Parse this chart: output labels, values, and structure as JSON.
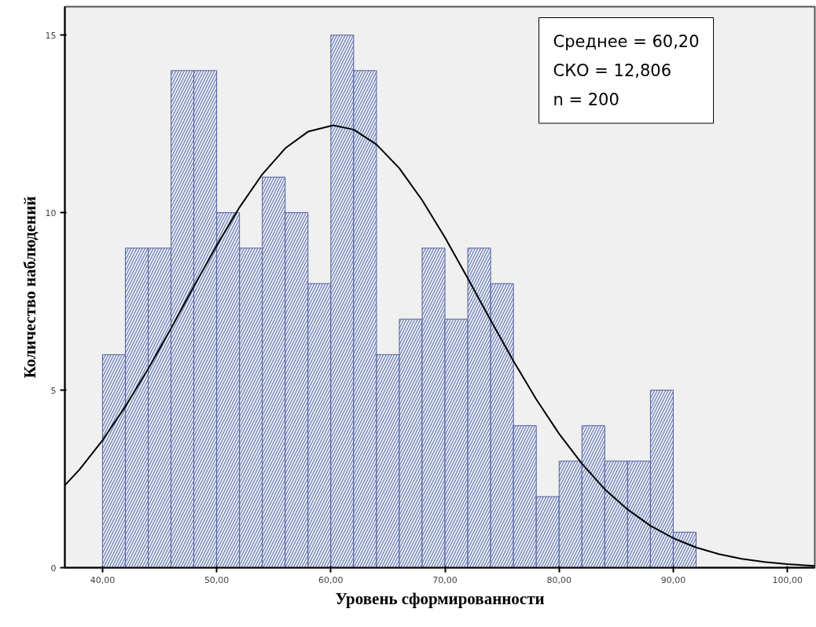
{
  "chart_data": {
    "type": "histogram",
    "xlabel": "Уровень сформированности",
    "ylabel": "Количество наблюдений",
    "annotations": [
      "Среднее = 60,20",
      "СКО = 12,806",
      "n = 200"
    ],
    "bins": [
      40,
      42,
      44,
      46,
      48,
      50,
      52,
      54,
      56,
      58,
      60,
      62,
      64,
      66,
      68,
      70,
      72,
      74,
      76,
      78,
      80,
      82,
      84,
      86,
      88,
      90,
      92
    ],
    "values": [
      6,
      9,
      9,
      14,
      14,
      10,
      9,
      11,
      10,
      8,
      15,
      14,
      6,
      7,
      9,
      7,
      9,
      8,
      4,
      2,
      3,
      4,
      3,
      3,
      5,
      1
    ],
    "color": "#e6eaf4",
    "series": [
      {
        "type": "line",
        "color": "#000000",
        "x": [
          36.7,
          38,
          40,
          42,
          44,
          46,
          48,
          50,
          52,
          54,
          56,
          58,
          60.2,
          62,
          64,
          66,
          68,
          70,
          72,
          74,
          76,
          78,
          80,
          82,
          84,
          86,
          88,
          90,
          92,
          94,
          96,
          98,
          100,
          102.4
        ],
        "values": [
          2.32,
          2.77,
          3.59,
          4.54,
          5.6,
          6.74,
          7.92,
          9.07,
          10.15,
          11.08,
          11.81,
          12.28,
          12.46,
          12.34,
          11.92,
          11.25,
          10.35,
          9.3,
          8.15,
          6.97,
          5.82,
          4.74,
          3.77,
          2.93,
          2.21,
          1.64,
          1.18,
          0.83,
          0.57,
          0.38,
          0.25,
          0.16,
          0.1,
          0.05
        ]
      }
    ],
    "xlim": [
      36.7,
      102.4
    ],
    "ylim": [
      0,
      15.8
    ],
    "xticks": [
      {
        "value": 40,
        "label": "40,00"
      },
      {
        "value": 50,
        "label": "50,00"
      },
      {
        "value": 60,
        "label": "60,00"
      },
      {
        "value": 70,
        "label": "70,00"
      },
      {
        "value": 80,
        "label": "80,00"
      },
      {
        "value": 90,
        "label": "90,00"
      },
      {
        "value": 100,
        "label": "100,00"
      }
    ],
    "yticks": [
      0,
      5,
      10,
      15
    ],
    "grid": false
  }
}
